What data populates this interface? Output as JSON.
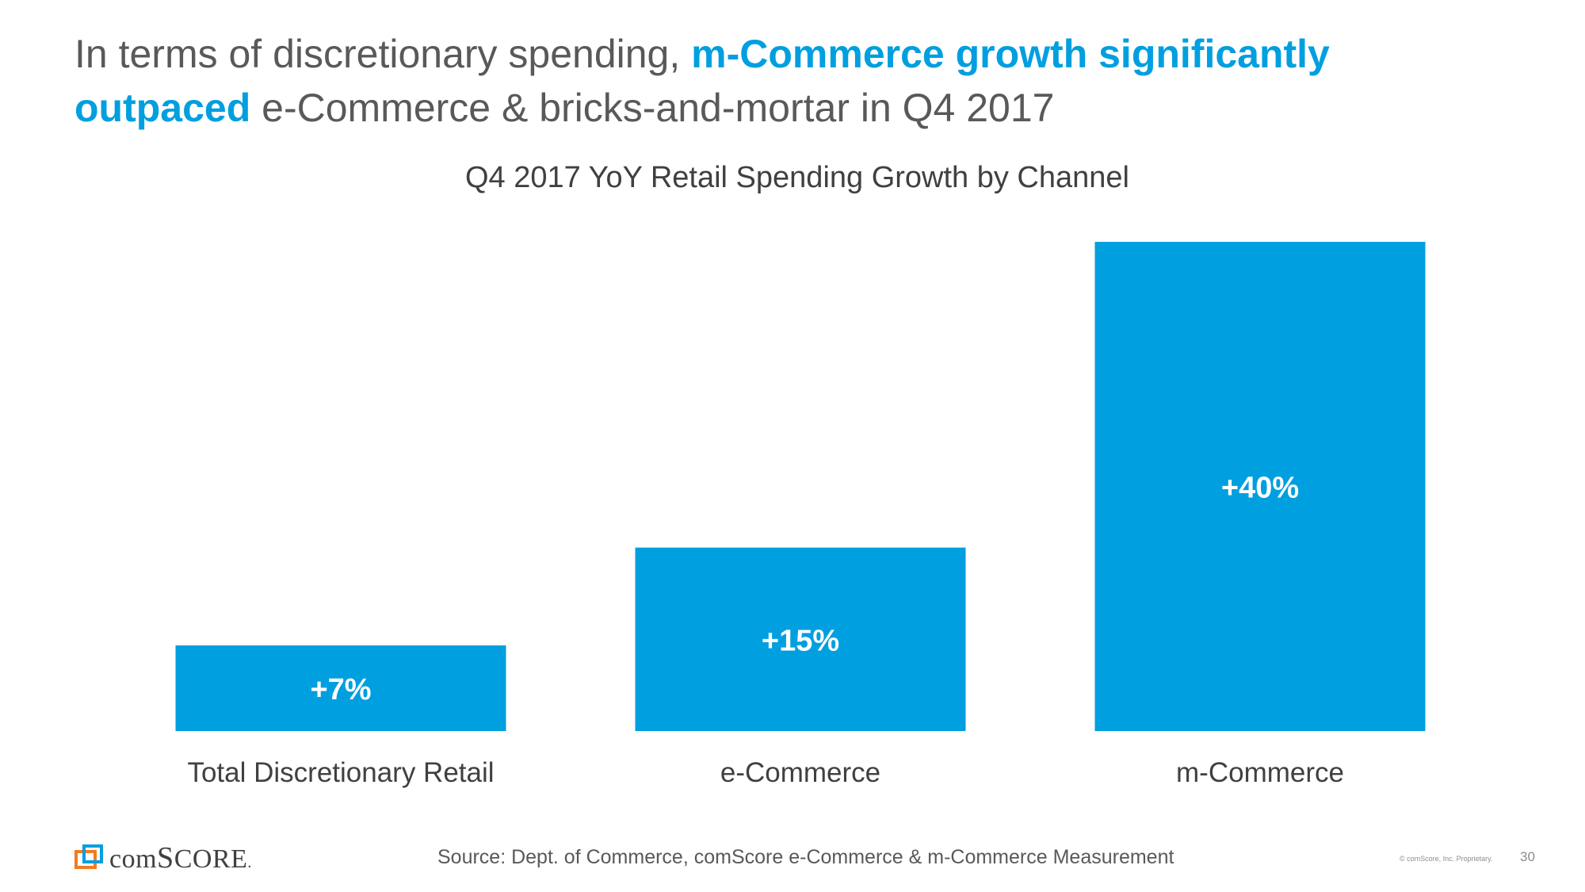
{
  "headline": {
    "part1": "In terms of discretionary spending, ",
    "highlight1": "m-Commerce growth significantly",
    "highlight2": "outpaced",
    "part2": " e-Commerce & bricks-and-mortar in Q4 2017"
  },
  "chart_data": {
    "type": "bar",
    "title": "Q4 2017 YoY Retail Spending Growth by Channel",
    "categories": [
      "Total Discretionary Retail",
      "e-Commerce",
      "m-Commerce"
    ],
    "values": [
      7,
      15,
      40
    ],
    "value_labels": [
      "+7%",
      "+15%",
      "+40%"
    ],
    "unit": "%",
    "xlabel": "",
    "ylabel": "",
    "ylim": [
      0,
      40
    ],
    "grid": false,
    "legend": "none",
    "bar_color": "#009fdf"
  },
  "footer": {
    "brand": "comScore",
    "brand_lead": "com",
    "brand_tail": "S",
    "brand_end": "CORE",
    "brand_dot": ".",
    "source": "Source: Dept. of Commerce, comScore e-Commerce & m-Commerce Measurement",
    "copyright": "© comScore, Inc. Proprietary.",
    "page_number": "30"
  },
  "colors": {
    "accent": "#009fdf",
    "text": "#595959",
    "logo_orange": "#f47b20"
  }
}
